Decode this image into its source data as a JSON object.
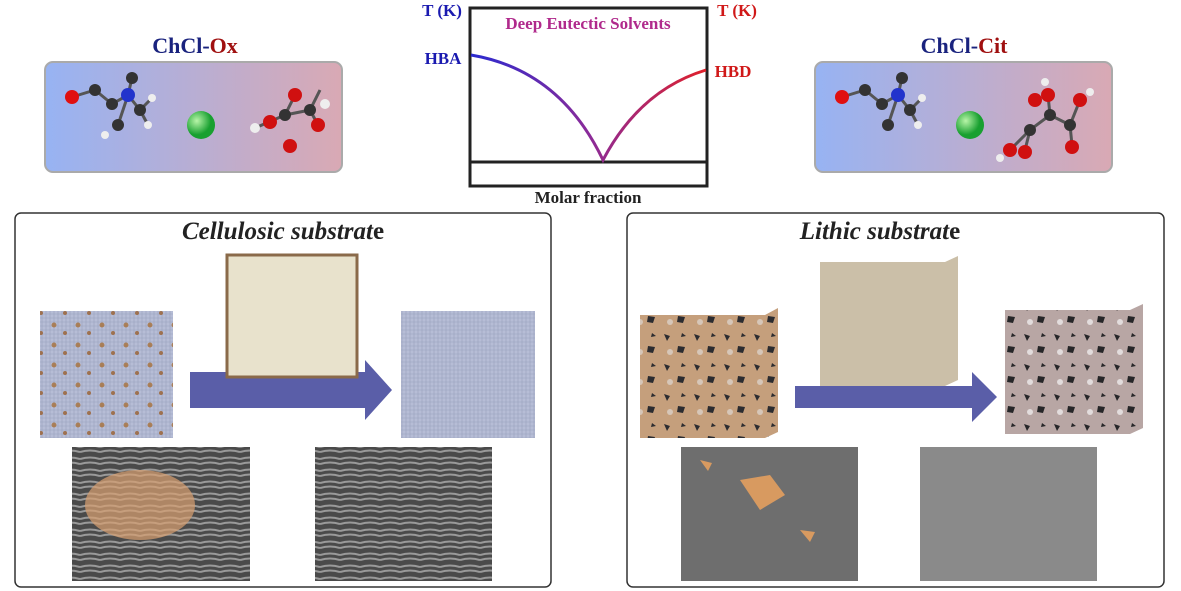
{
  "mixtures": [
    {
      "hba": "ChCl-",
      "hbd": "Ox"
    },
    {
      "hba": "ChCl-",
      "hbd": "Cit"
    }
  ],
  "phase_diagram": {
    "title": "Deep Eutectic Solvents",
    "left_axis": "T (K)",
    "right_axis": "T (K)",
    "left_end": "HBA",
    "right_end": "HBD",
    "x_axis": "Molar fraction"
  },
  "panels": [
    {
      "title_italic": "Cellulosic substrat",
      "title_end": "e"
    },
    {
      "title_italic": "Lithic substrat",
      "title_end": "e"
    }
  ]
}
